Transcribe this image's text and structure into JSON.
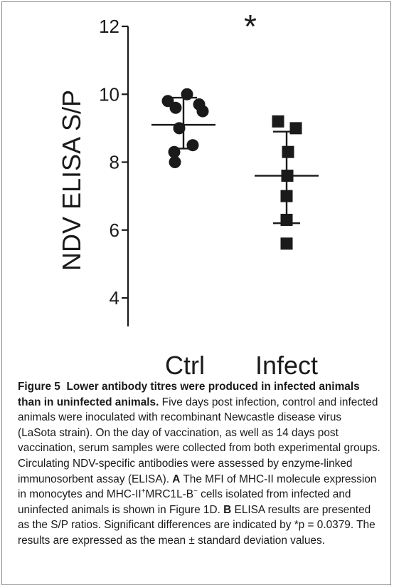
{
  "chart_data": {
    "type": "scatter",
    "ylabel": "NDV ELISA S/P",
    "ylim": [
      4,
      12
    ],
    "yticks": [
      4,
      6,
      8,
      10,
      12
    ],
    "categories": [
      "Ctrl",
      "Infect"
    ],
    "groups": [
      {
        "category": "Ctrl",
        "marker": "circle",
        "values": [
          10.0,
          9.8,
          9.7,
          9.6,
          9.5,
          9.0,
          8.5,
          8.3,
          8.0
        ],
        "mean": 9.1,
        "sd_upper": 9.9,
        "sd_lower": 8.4
      },
      {
        "category": "Infect",
        "marker": "square",
        "values": [
          9.2,
          9.0,
          8.3,
          7.6,
          7.0,
          6.3,
          5.6
        ],
        "mean": 7.6,
        "sd_upper": 8.9,
        "sd_lower": 6.2
      }
    ],
    "annotation": "*",
    "colors": {
      "points": "#1a1a1a",
      "axis": "#1a1a1a"
    }
  },
  "caption": {
    "figure_label": "Figure 5",
    "title": "Lower antibody titres were produced in infected animals than in uninfected animals.",
    "text_1": " Five days post infection, control and infected animals were inoculated with recombinant Newcastle disease virus (LaSota strain). On the day of vaccination, as well as 14 days post vaccination, serum samples were collected from both experimental groups. Circulating NDV-specific antibodies were assessed by enzyme-linked immunosorbent assay (ELISA). ",
    "panel_a": "A",
    "text_2": " The MFI of MHC-II molecule expression in monocytes and MHC-II",
    "sup_1": "+",
    "text_3": "MRC1L-B",
    "sup_2": "−",
    "text_4": " cells isolated from infected and uninfected animals is shown in Figure 1D. ",
    "panel_b": "B",
    "text_5": " ELISA results are presented as the S/P ratios. Significant differences are indicated by *p = 0.0379. The results are expressed as the mean ± standard deviation values."
  }
}
